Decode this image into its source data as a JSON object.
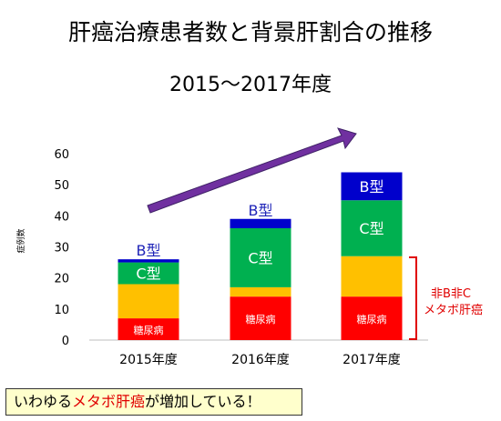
{
  "chart_data": {
    "type": "bar",
    "stacked": true,
    "title": "肝癌治療患者数と背景肝割合の推移",
    "subtitle": "2015〜2017年度",
    "ylabel": "症例数",
    "xlabel": "",
    "ylim": [
      0,
      60
    ],
    "yticks": [
      0,
      10,
      20,
      30,
      40,
      50,
      60
    ],
    "categories": [
      "2015年度",
      "2016年度",
      "2017年度"
    ],
    "series": [
      {
        "name": "糖尿病",
        "color": "#ff0000",
        "values": [
          7,
          14,
          14
        ]
      },
      {
        "name": "",
        "color": "#ffc000",
        "values": [
          11,
          3,
          13
        ]
      },
      {
        "name": "C型",
        "color": "#00b050",
        "values": [
          7,
          19,
          18
        ]
      },
      {
        "name": "B型",
        "color": "#0000cc",
        "values": [
          1,
          3,
          9
        ]
      }
    ],
    "segment_labels": {
      "diabetes": "糖尿病",
      "hcv": "C型",
      "hbv": "B型"
    },
    "bracket_annotation": [
      "非B非C",
      "メタボ肝癌"
    ],
    "grid": false,
    "arrow": "upward trend arrow from 2015 to 2017"
  },
  "callout": {
    "prefix": "いわゆる",
    "highlight": "メタボ肝癌",
    "suffix": "が増加している！"
  },
  "colors": {
    "arrow_fill": "#7030a0",
    "annotation_red": "#e00000",
    "callout_bg": "#ffffcc",
    "blue_label": "#1f24b8"
  }
}
